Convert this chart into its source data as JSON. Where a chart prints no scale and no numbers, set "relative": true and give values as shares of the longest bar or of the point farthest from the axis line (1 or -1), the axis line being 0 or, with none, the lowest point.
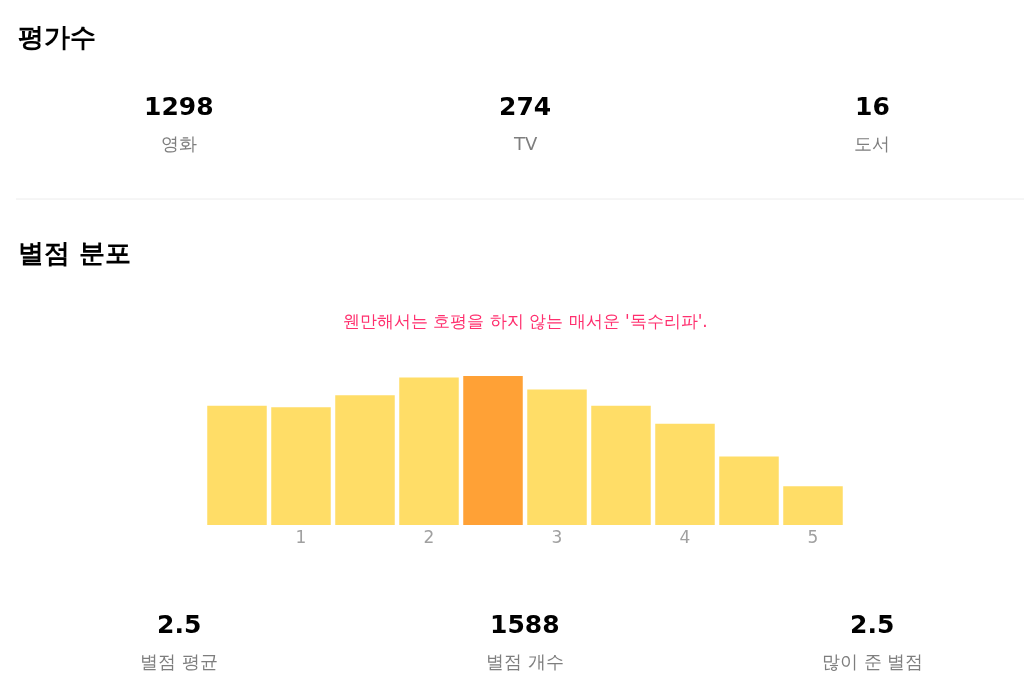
{
  "chart_data": [
    {
      "type": "other",
      "title": "평가수",
      "categories": [
        "영화",
        "TV",
        "도서"
      ],
      "values": [
        1298,
        274,
        16
      ],
      "data_labels": true
    },
    {
      "type": "bar",
      "title": "별점 분포",
      "subtitle": "웬만해서는 호평을 하지 않는 매서운 '독수리파'.",
      "relative": true,
      "categories": [
        null,
        "1",
        null,
        "2",
        null,
        "3",
        null,
        "4",
        null,
        "5"
      ],
      "values": [
        0.8,
        0.79,
        0.87,
        0.99,
        1,
        0.91,
        0.8,
        0.68,
        0.46,
        0.26
      ],
      "colors": [
        "#ffdd67",
        "#ffdd67",
        "#ffdd67",
        "#ffdd67",
        "#ffa136",
        "#ffdd67",
        "#ffdd67",
        "#ffdd67",
        "#ffdd67",
        "#ffdd67"
      ]
    },
    {
      "type": "other",
      "categories": [
        "별점 평균",
        "별점 개수",
        "많이 준 별점"
      ],
      "values": [
        2.5,
        1588,
        2.5
      ],
      "data_labels": true
    }
  ]
}
